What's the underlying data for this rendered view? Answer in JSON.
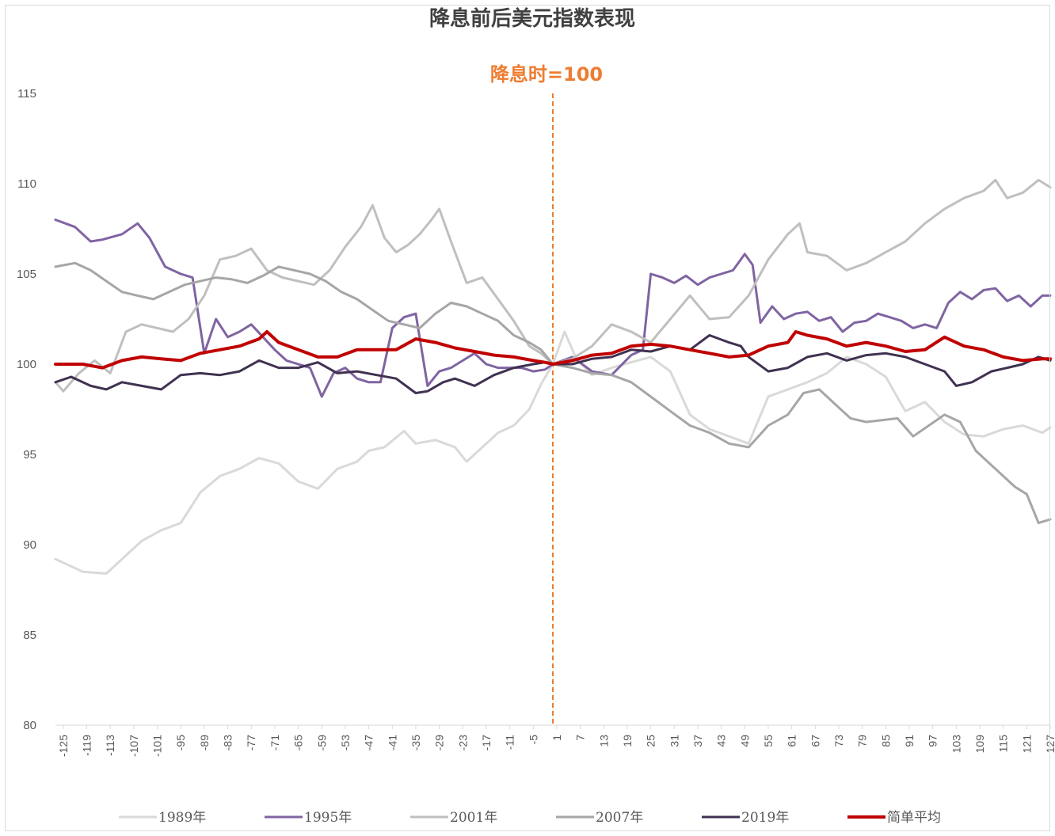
{
  "chart_data": {
    "type": "line",
    "title": "降息前后美元指数表现",
    "annotation": "降息时=100",
    "xlabel": "",
    "ylabel": "",
    "ylim": [
      80,
      115
    ],
    "y_ticks": [
      80,
      85,
      90,
      95,
      100,
      105,
      110,
      115
    ],
    "x_range": [
      -127,
      127
    ],
    "x_ticks": [
      -125,
      -119,
      -113,
      -107,
      -101,
      -95,
      -89,
      -83,
      -77,
      -71,
      -65,
      -59,
      -53,
      -47,
      -41,
      -35,
      -29,
      -23,
      -17,
      -11,
      -5,
      1,
      7,
      13,
      19,
      25,
      31,
      37,
      43,
      49,
      55,
      61,
      67,
      73,
      79,
      85,
      91,
      97,
      103,
      109,
      115,
      121,
      127
    ],
    "marker_line_x": 0,
    "grid": false,
    "legend_position": "bottom",
    "series": [
      {
        "name": "1989年",
        "color": "#D9D9D9",
        "width": 3,
        "x": [
          -127,
          -120,
          -114,
          -110,
          -105,
          -100,
          -95,
          -90,
          -85,
          -80,
          -75,
          -70,
          -65,
          -60,
          -55,
          -50,
          -47,
          -43,
          -38,
          -35,
          -30,
          -25,
          -22,
          -18,
          -14,
          -10,
          -6,
          -3,
          0,
          3,
          6,
          10,
          15,
          20,
          25,
          30,
          35,
          40,
          45,
          50,
          55,
          60,
          65,
          70,
          75,
          80,
          85,
          90,
          95,
          100,
          105,
          110,
          115,
          120,
          125,
          127
        ],
        "y": [
          89.2,
          88.5,
          88.4,
          89.2,
          90.2,
          90.8,
          91.2,
          92.9,
          93.8,
          94.2,
          94.8,
          94.5,
          93.5,
          93.1,
          94.2,
          94.6,
          95.2,
          95.4,
          96.3,
          95.6,
          95.8,
          95.4,
          94.6,
          95.4,
          96.2,
          96.6,
          97.5,
          98.9,
          100.0,
          101.8,
          100.3,
          99.4,
          99.8,
          100.1,
          100.4,
          99.6,
          97.2,
          96.4,
          96.0,
          95.6,
          98.2,
          98.6,
          99.0,
          99.5,
          100.4,
          100.0,
          99.3,
          97.4,
          97.9,
          96.8,
          96.1,
          96.0,
          96.4,
          96.6,
          96.2,
          96.5
        ]
      },
      {
        "name": "1995年",
        "color": "#8064A2",
        "width": 3,
        "x": [
          -127,
          -122,
          -118,
          -115,
          -110,
          -106,
          -103,
          -99,
          -95,
          -92,
          -89,
          -86,
          -83,
          -80,
          -77,
          -74,
          -71,
          -68,
          -65,
          -62,
          -59,
          -56,
          -53,
          -50,
          -47,
          -44,
          -41,
          -38,
          -35,
          -32,
          -29,
          -26,
          -23,
          -20,
          -17,
          -14,
          -11,
          -8,
          -5,
          -2,
          0,
          5,
          10,
          15,
          20,
          23,
          25,
          28,
          31,
          34,
          37,
          40,
          43,
          46,
          49,
          51,
          53,
          56,
          59,
          62,
          65,
          68,
          71,
          74,
          77,
          80,
          83,
          86,
          89,
          92,
          95,
          98,
          101,
          104,
          107,
          110,
          113,
          116,
          119,
          122,
          125,
          127
        ],
        "y": [
          108.0,
          107.6,
          106.8,
          106.9,
          107.2,
          107.8,
          107.0,
          105.4,
          105.0,
          104.8,
          100.6,
          102.5,
          101.5,
          101.8,
          102.2,
          101.5,
          100.8,
          100.2,
          100.0,
          99.8,
          98.2,
          99.5,
          99.8,
          99.2,
          99.0,
          99.0,
          102.0,
          102.6,
          102.8,
          98.8,
          99.6,
          99.8,
          100.2,
          100.6,
          100.0,
          99.8,
          99.8,
          99.8,
          99.6,
          99.7,
          100.0,
          100.4,
          99.6,
          99.4,
          100.5,
          100.8,
          105.0,
          104.8,
          104.5,
          104.9,
          104.4,
          104.8,
          105.0,
          105.2,
          106.1,
          105.5,
          102.3,
          103.2,
          102.5,
          102.8,
          102.9,
          102.4,
          102.6,
          101.8,
          102.3,
          102.4,
          102.8,
          102.6,
          102.4,
          102.0,
          102.2,
          102.0,
          103.4,
          104.0,
          103.6,
          104.1,
          104.2,
          103.5,
          103.8,
          103.2,
          103.8,
          103.8
        ]
      },
      {
        "name": "2001年",
        "color": "#BFBFBF",
        "width": 3,
        "x": [
          -127,
          -125,
          -121,
          -117,
          -113,
          -109,
          -105,
          -101,
          -97,
          -93,
          -89,
          -85,
          -81,
          -77,
          -73,
          -69,
          -65,
          -61,
          -57,
          -53,
          -49,
          -46,
          -43,
          -40,
          -37,
          -34,
          -31,
          -29,
          -26,
          -22,
          -18,
          -14,
          -10,
          -6,
          -3,
          0,
          5,
          10,
          15,
          20,
          25,
          30,
          35,
          40,
          45,
          50,
          55,
          60,
          63,
          65,
          70,
          75,
          80,
          85,
          90,
          95,
          100,
          105,
          110,
          113,
          116,
          120,
          124,
          127
        ],
        "y": [
          99.0,
          98.5,
          99.5,
          100.2,
          99.5,
          101.8,
          102.2,
          102.0,
          101.8,
          102.5,
          103.8,
          105.8,
          106.0,
          106.4,
          105.2,
          104.8,
          104.6,
          104.4,
          105.2,
          106.5,
          107.6,
          108.8,
          107.0,
          106.2,
          106.6,
          107.2,
          108.0,
          108.6,
          106.8,
          104.5,
          104.8,
          103.6,
          102.4,
          101.0,
          100.6,
          100.0,
          100.3,
          101.0,
          102.2,
          101.8,
          101.2,
          102.5,
          103.8,
          102.5,
          102.6,
          103.8,
          105.8,
          107.2,
          107.8,
          106.2,
          106.0,
          105.2,
          105.6,
          106.2,
          106.8,
          107.8,
          108.6,
          109.2,
          109.6,
          110.2,
          109.2,
          109.5,
          110.2,
          109.8
        ]
      },
      {
        "name": "2007年",
        "color": "#A6A6A6",
        "width": 3,
        "x": [
          -127,
          -122,
          -118,
          -114,
          -110,
          -106,
          -102,
          -98,
          -94,
          -90,
          -86,
          -82,
          -78,
          -74,
          -70,
          -66,
          -62,
          -58,
          -54,
          -50,
          -46,
          -42,
          -38,
          -34,
          -30,
          -26,
          -22,
          -18,
          -14,
          -10,
          -6,
          -3,
          0,
          5,
          10,
          15,
          20,
          25,
          30,
          35,
          40,
          45,
          50,
          55,
          60,
          64,
          68,
          72,
          76,
          80,
          84,
          88,
          92,
          96,
          100,
          104,
          108,
          112,
          115,
          118,
          121,
          124,
          127
        ],
        "y": [
          105.4,
          105.6,
          105.2,
          104.6,
          104.0,
          103.8,
          103.6,
          104.0,
          104.4,
          104.6,
          104.8,
          104.7,
          104.5,
          104.9,
          105.4,
          105.2,
          105.0,
          104.6,
          104.0,
          103.6,
          103.0,
          102.4,
          102.2,
          102.0,
          102.8,
          103.4,
          103.2,
          102.8,
          102.4,
          101.6,
          101.2,
          100.8,
          100.0,
          99.8,
          99.5,
          99.4,
          99.0,
          98.2,
          97.4,
          96.6,
          96.2,
          95.6,
          95.4,
          96.6,
          97.2,
          98.4,
          98.6,
          97.8,
          97.0,
          96.8,
          96.9,
          97.0,
          96.0,
          96.6,
          97.2,
          96.8,
          95.2,
          94.4,
          93.8,
          93.2,
          92.8,
          91.2,
          91.4
        ]
      },
      {
        "name": "2019年",
        "color": "#403151",
        "width": 3,
        "x": [
          -127,
          -123,
          -118,
          -114,
          -110,
          -105,
          -100,
          -95,
          -90,
          -85,
          -80,
          -75,
          -70,
          -65,
          -60,
          -55,
          -50,
          -45,
          -40,
          -35,
          -32,
          -28,
          -25,
          -20,
          -15,
          -10,
          -5,
          -2,
          0,
          5,
          10,
          15,
          20,
          25,
          30,
          35,
          40,
          45,
          48,
          50,
          55,
          60,
          65,
          70,
          75,
          80,
          85,
          90,
          95,
          100,
          103,
          107,
          112,
          116,
          120,
          124,
          127
        ],
        "y": [
          99.0,
          99.3,
          98.8,
          98.6,
          99.0,
          98.8,
          98.6,
          99.4,
          99.5,
          99.4,
          99.6,
          100.2,
          99.8,
          99.8,
          100.1,
          99.5,
          99.6,
          99.4,
          99.2,
          98.4,
          98.5,
          99.0,
          99.2,
          98.8,
          99.4,
          99.8,
          100.0,
          100.1,
          100.0,
          100.0,
          100.3,
          100.4,
          100.8,
          100.7,
          101.0,
          100.8,
          101.6,
          101.2,
          101.0,
          100.4,
          99.6,
          99.8,
          100.4,
          100.6,
          100.2,
          100.5,
          100.6,
          100.4,
          100.0,
          99.6,
          98.8,
          99.0,
          99.6,
          99.8,
          100.0,
          100.4,
          100.2
        ]
      },
      {
        "name": "简单平均",
        "color": "#C00000",
        "width": 4,
        "x": [
          -127,
          -120,
          -115,
          -110,
          -105,
          -100,
          -95,
          -90,
          -85,
          -80,
          -75,
          -73,
          -70,
          -65,
          -60,
          -55,
          -50,
          -45,
          -40,
          -35,
          -30,
          -25,
          -20,
          -15,
          -10,
          -5,
          -2,
          0,
          5,
          10,
          15,
          20,
          25,
          30,
          35,
          40,
          45,
          50,
          55,
          60,
          62,
          65,
          70,
          75,
          80,
          85,
          90,
          95,
          100,
          105,
          110,
          115,
          120,
          125,
          127
        ],
        "y": [
          100.0,
          100.0,
          99.8,
          100.2,
          100.4,
          100.3,
          100.2,
          100.6,
          100.8,
          101.0,
          101.4,
          101.8,
          101.2,
          100.8,
          100.4,
          100.4,
          100.8,
          100.8,
          100.8,
          101.4,
          101.2,
          100.9,
          100.7,
          100.5,
          100.4,
          100.2,
          100.1,
          100.0,
          100.2,
          100.5,
          100.6,
          101.0,
          101.1,
          101.0,
          100.8,
          100.6,
          100.4,
          100.5,
          101.0,
          101.2,
          101.8,
          101.6,
          101.4,
          101.0,
          101.2,
          101.0,
          100.7,
          100.8,
          101.5,
          101.0,
          100.8,
          100.4,
          100.2,
          100.3,
          100.3
        ]
      }
    ]
  }
}
